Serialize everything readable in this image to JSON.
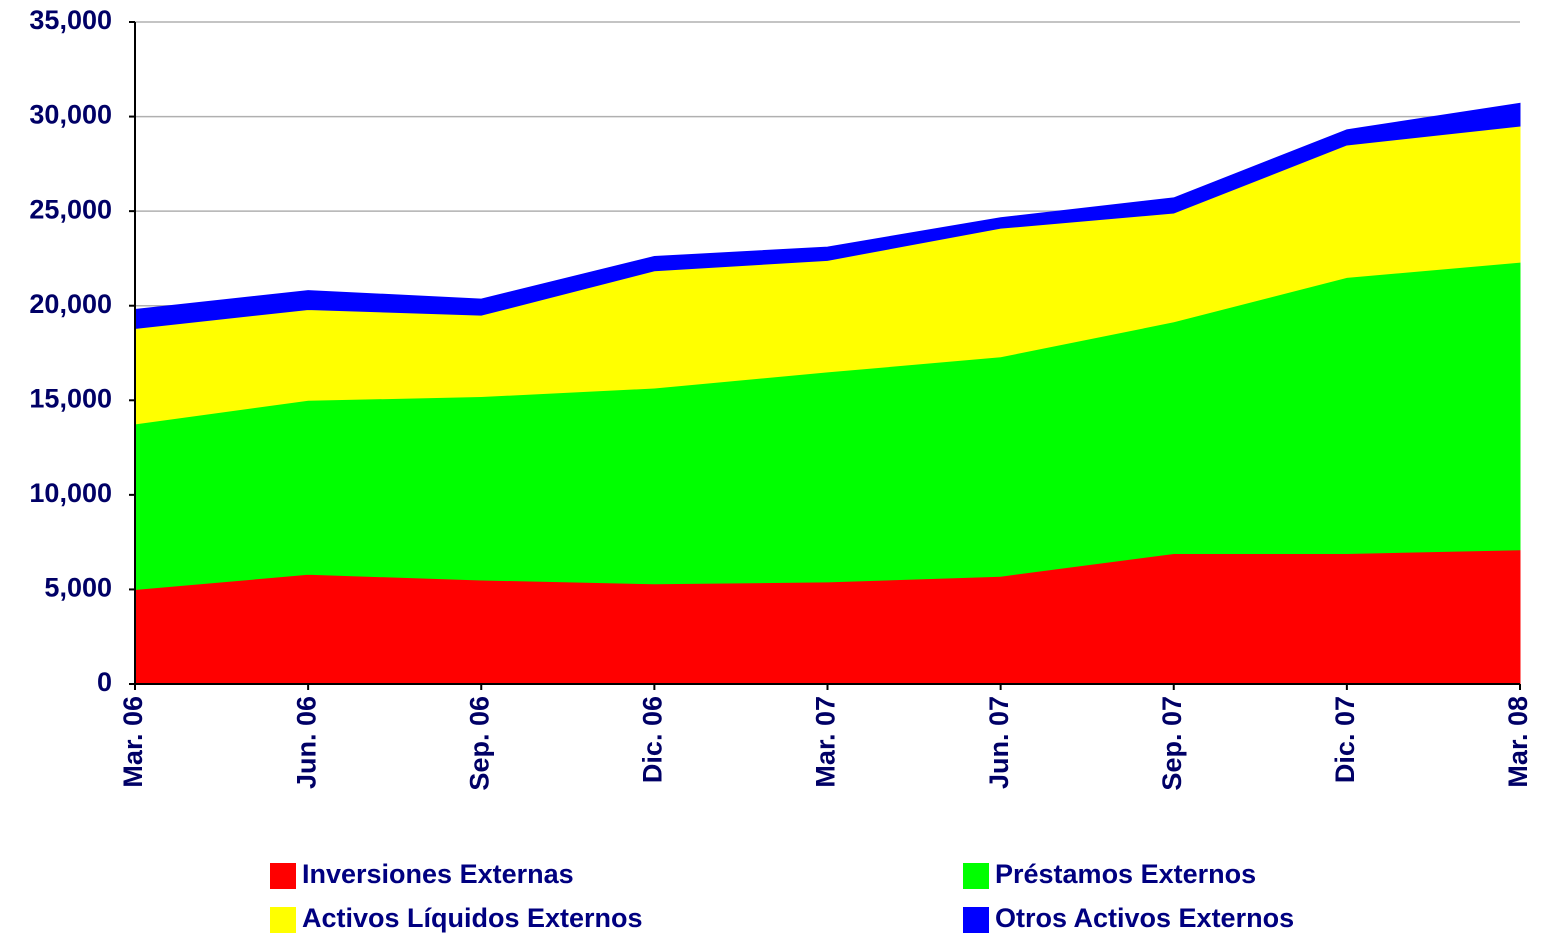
{
  "chart_data": {
    "type": "stacked-area",
    "categories": [
      "Mar. 06",
      "Jun. 06",
      "Sep. 06",
      "Dic. 06",
      "Mar. 07",
      "Jun. 07",
      "Sep. 07",
      "Dic. 07",
      "Mar. 08"
    ],
    "series": [
      {
        "name": "Inversiones Externas",
        "color": "#ff0000",
        "values": [
          5000,
          5800,
          5500,
          5300,
          5400,
          5700,
          6900,
          6900,
          7100
        ]
      },
      {
        "name": "Préstamos Externos",
        "color": "#00ff00",
        "values": [
          8750,
          9200,
          9700,
          10350,
          11100,
          11600,
          12250,
          14600,
          15200
        ]
      },
      {
        "name": "Activos Líquidos Externos",
        "color": "#ffff00",
        "values": [
          5050,
          4800,
          4300,
          6200,
          5900,
          6800,
          5750,
          7000,
          7200
        ]
      },
      {
        "name": "Otros Activos Externos",
        "color": "#0000ff",
        "values": [
          1000,
          1000,
          850,
          750,
          700,
          550,
          800,
          800,
          1200
        ]
      }
    ],
    "ylim": [
      0,
      35000
    ],
    "yticks": [
      0,
      {
        "value": 5000,
        "label": "5,000"
      },
      {
        "value": 10000,
        "label": "10,000"
      },
      {
        "value": 15000,
        "label": "15,000"
      },
      {
        "value": 20000,
        "label": "20,000"
      },
      {
        "value": 25000,
        "label": "25,000"
      },
      {
        "value": 30000,
        "label": "30,000"
      },
      {
        "value": 35000,
        "label": "35,000"
      }
    ],
    "grid": true
  }
}
